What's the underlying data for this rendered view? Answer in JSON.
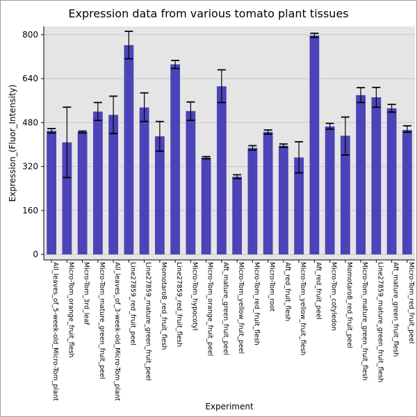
{
  "chart_data": {
    "type": "bar",
    "title": "Expression data from various tomato plant tissues",
    "xlabel": "Experiment",
    "ylabel": "Expression_(Fluor_Intensity)",
    "ylim": [
      -20,
      830
    ],
    "yticks": [
      0,
      160,
      320,
      480,
      640,
      800
    ],
    "grid": true,
    "bar_color": "#4b44b8",
    "plot_background": "#e5e5e5",
    "categories": [
      "All_leaves_of_5-week-old_Micro-Tom_plant",
      "Micro-Tom_orange_fruit_flesh",
      "Micro-Tom_3rd_leaf",
      "Micro-Tom_mature_green_fruit_peel",
      "All_leaves_of_3-week-old_Micro-Tom_plant",
      "Line27859_red_fruit_peel",
      "Line27859_mature_green_fruit_peel",
      "Momotaro8_red_fruit_flesh",
      "Line27859_red_fruit_flesh",
      "Micro-Tom_hypocotyl",
      "Micro-Tom_orange_fruit_peel",
      "Aft_mature_green_fruit_peel",
      "Micro-Tom_yellow_fruit_peel",
      "Micro-Tom_red_fruit_flesh",
      "Micro-Tom_root",
      "Aft_red_fruit_flesh",
      "Micro-Tom_yellow_fruit_flesh",
      "Aft_red_fruit_peel",
      "Micro-Tom_cotyledon",
      "Momotaro8_red_fruit_peel",
      "Micro-Tom_mature_green_fruit_flesh",
      "Line27859_mature_green_fruit_flesh",
      "Aft_mature_green_fruit_flesh",
      "Micro-Tom_red_fruit_peel"
    ],
    "values": [
      450,
      408,
      446,
      520,
      508,
      762,
      535,
      430,
      692,
      522,
      352,
      612,
      283,
      388,
      446,
      396,
      353,
      797,
      466,
      432,
      580,
      572,
      532,
      453
    ],
    "error_low": [
      442,
      280,
      442,
      488,
      440,
      712,
      484,
      376,
      677,
      488,
      348,
      553,
      276,
      380,
      438,
      390,
      297,
      790,
      456,
      362,
      553,
      536,
      518,
      445
    ],
    "error_high": [
      458,
      536,
      449,
      553,
      576,
      812,
      588,
      484,
      706,
      555,
      356,
      672,
      290,
      396,
      453,
      402,
      410,
      805,
      477,
      500,
      607,
      608,
      546,
      468
    ]
  }
}
